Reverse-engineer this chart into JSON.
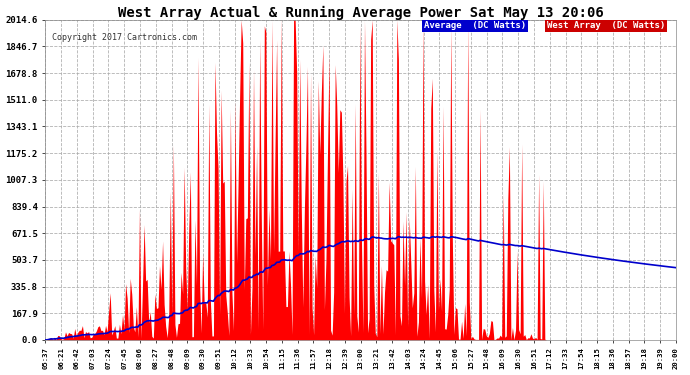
{
  "title": "West Array Actual & Running Average Power Sat May 13 20:06",
  "copyright": "Copyright 2017 Cartronics.com",
  "legend_avg": "Average  (DC Watts)",
  "legend_west": "West Array  (DC Watts)",
  "yticks": [
    0.0,
    167.9,
    335.8,
    503.7,
    671.5,
    839.4,
    1007.3,
    1175.2,
    1343.1,
    1511.0,
    1678.8,
    1846.7,
    2014.6
  ],
  "ymax": 2014.6,
  "ymin": 0.0,
  "plot_bg": "#ffffff",
  "fig_bg": "#ffffff",
  "grid_color": "#aaaaaa",
  "bar_color": "#ff0000",
  "avg_color": "#0000cc",
  "title_color": "#000000",
  "xtick_color": "#000000",
  "ytick_color": "#000000",
  "xtick_labels": [
    "05:37",
    "06:21",
    "06:42",
    "07:03",
    "07:24",
    "07:45",
    "08:06",
    "08:27",
    "08:48",
    "09:09",
    "09:30",
    "09:51",
    "10:12",
    "10:33",
    "10:54",
    "11:15",
    "11:36",
    "11:57",
    "12:18",
    "12:39",
    "13:00",
    "13:21",
    "13:42",
    "14:03",
    "14:24",
    "14:45",
    "15:06",
    "15:27",
    "15:48",
    "16:09",
    "16:30",
    "16:51",
    "17:12",
    "17:33",
    "17:54",
    "18:15",
    "18:36",
    "18:57",
    "19:18",
    "19:39",
    "20:00"
  ]
}
